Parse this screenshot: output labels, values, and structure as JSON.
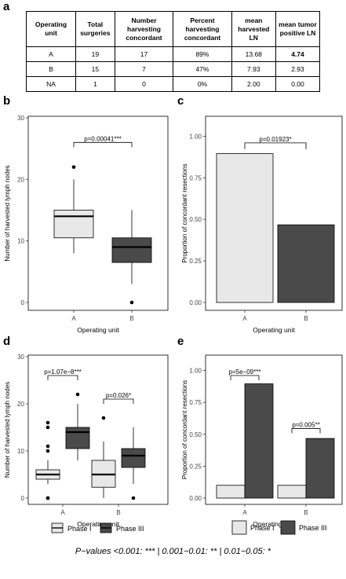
{
  "panels": {
    "a": "a",
    "b": "b",
    "c": "c",
    "d": "d",
    "e": "e"
  },
  "table": {
    "headers": [
      "Operating unit",
      "Total surgeries",
      "Number harvesting concordant",
      "Percent harvesting concordant",
      "mean harvested LN",
      "mean tumor positive LN"
    ],
    "rows": [
      [
        "A",
        "19",
        "17",
        "89%",
        "13.68",
        "4.74"
      ],
      [
        "B",
        "15",
        "7",
        "47%",
        "7.93",
        "2.93"
      ],
      [
        "NA",
        "1",
        "0",
        "0%",
        "2.00",
        "0.00"
      ]
    ]
  },
  "legend": {
    "phase1": "Phase I",
    "phase3": "Phase III"
  },
  "footnote": "P−values <0.001: *** | 0.001−0.01: ** | 0.01−0.05: *",
  "colors": {
    "phase1": "#e8e8e8",
    "phase3": "#4a4a4a",
    "panel_bg": "#ffffff",
    "grid": "#d9d9d9"
  },
  "chart_data": [
    {
      "id": "b",
      "type": "box",
      "xlabel": "Operating unit",
      "ylabel": "Number of harvested lymph nodes",
      "categories": [
        "A",
        "B"
      ],
      "ylim": [
        0,
        30
      ],
      "yticks": [
        0,
        10,
        20,
        30
      ],
      "boxes": [
        {
          "cat": "A",
          "fill": "phase1",
          "min": 8,
          "q1": 10.5,
          "median": 14,
          "q3": 15,
          "max": 20,
          "outliers": [
            22
          ]
        },
        {
          "cat": "B",
          "fill": "phase3",
          "min": 3,
          "q1": 6.5,
          "median": 9,
          "q3": 10.5,
          "max": 15,
          "outliers": [
            0
          ]
        }
      ],
      "annotations": [
        {
          "text": "p=0.00041***",
          "x1": "A",
          "x2": "B",
          "y": 26
        }
      ]
    },
    {
      "id": "c",
      "type": "bar",
      "xlabel": "Operating unit",
      "ylabel": "Proportion of concordant resections",
      "categories": [
        "A",
        "B"
      ],
      "ylim": [
        0,
        1.12
      ],
      "yticks": [
        "0.00",
        "0.25",
        "0.50",
        "0.75",
        "1.00"
      ],
      "values": [
        0.895,
        0.467
      ],
      "fills": [
        "phase1",
        "phase3"
      ],
      "annotations": [
        {
          "text": "p=0.01923*",
          "x1": "A",
          "x2": "B",
          "y": 0.96
        }
      ]
    },
    {
      "id": "d",
      "type": "box",
      "xlabel": "Operating unit",
      "ylabel": "Number of harvested lymph nodes",
      "categories": [
        "A",
        "B"
      ],
      "ylim": [
        0,
        30
      ],
      "yticks": [
        0,
        10,
        20,
        30
      ],
      "boxes": [
        {
          "cat": "A",
          "series": "Phase I",
          "fill": "phase1",
          "min": 3,
          "q1": 4,
          "median": 5,
          "q3": 6,
          "max": 8,
          "outliers": [
            0,
            0,
            10,
            11,
            15,
            16
          ]
        },
        {
          "cat": "A",
          "series": "Phase III",
          "fill": "phase3",
          "min": 8,
          "q1": 10.5,
          "median": 14,
          "q3": 15,
          "max": 20,
          "outliers": [
            22
          ]
        },
        {
          "cat": "B",
          "series": "Phase I",
          "fill": "phase1",
          "min": 0,
          "q1": 2.3,
          "median": 5,
          "q3": 8,
          "max": 12,
          "outliers": [
            17
          ]
        },
        {
          "cat": "B",
          "series": "Phase III",
          "fill": "phase3",
          "min": 3,
          "q1": 6.5,
          "median": 9,
          "q3": 10.5,
          "max": 15,
          "outliers": [
            0
          ]
        }
      ],
      "annotations": [
        {
          "text": "p=1.07e−8***",
          "cat": "A",
          "y": 26
        },
        {
          "text": "p=0.026*",
          "cat": "B",
          "y": 21
        }
      ]
    },
    {
      "id": "e",
      "type": "bar",
      "xlabel": "Operating unit",
      "ylabel": "Proportion of concordant resections",
      "categories": [
        "A",
        "B"
      ],
      "ylim": [
        0,
        1.12
      ],
      "yticks": [
        "0.00",
        "0.25",
        "0.50",
        "0.75",
        "1.00"
      ],
      "series": [
        {
          "name": "Phase I",
          "fill": "phase1",
          "values": [
            0.1,
            0.1
          ]
        },
        {
          "name": "Phase III",
          "fill": "phase3",
          "values": [
            0.895,
            0.467
          ]
        }
      ],
      "annotations": [
        {
          "text": "p=5e−09***",
          "cat": "A",
          "y": 0.96
        },
        {
          "text": "p=0.005**",
          "cat": "B",
          "y": 0.545
        }
      ]
    }
  ]
}
